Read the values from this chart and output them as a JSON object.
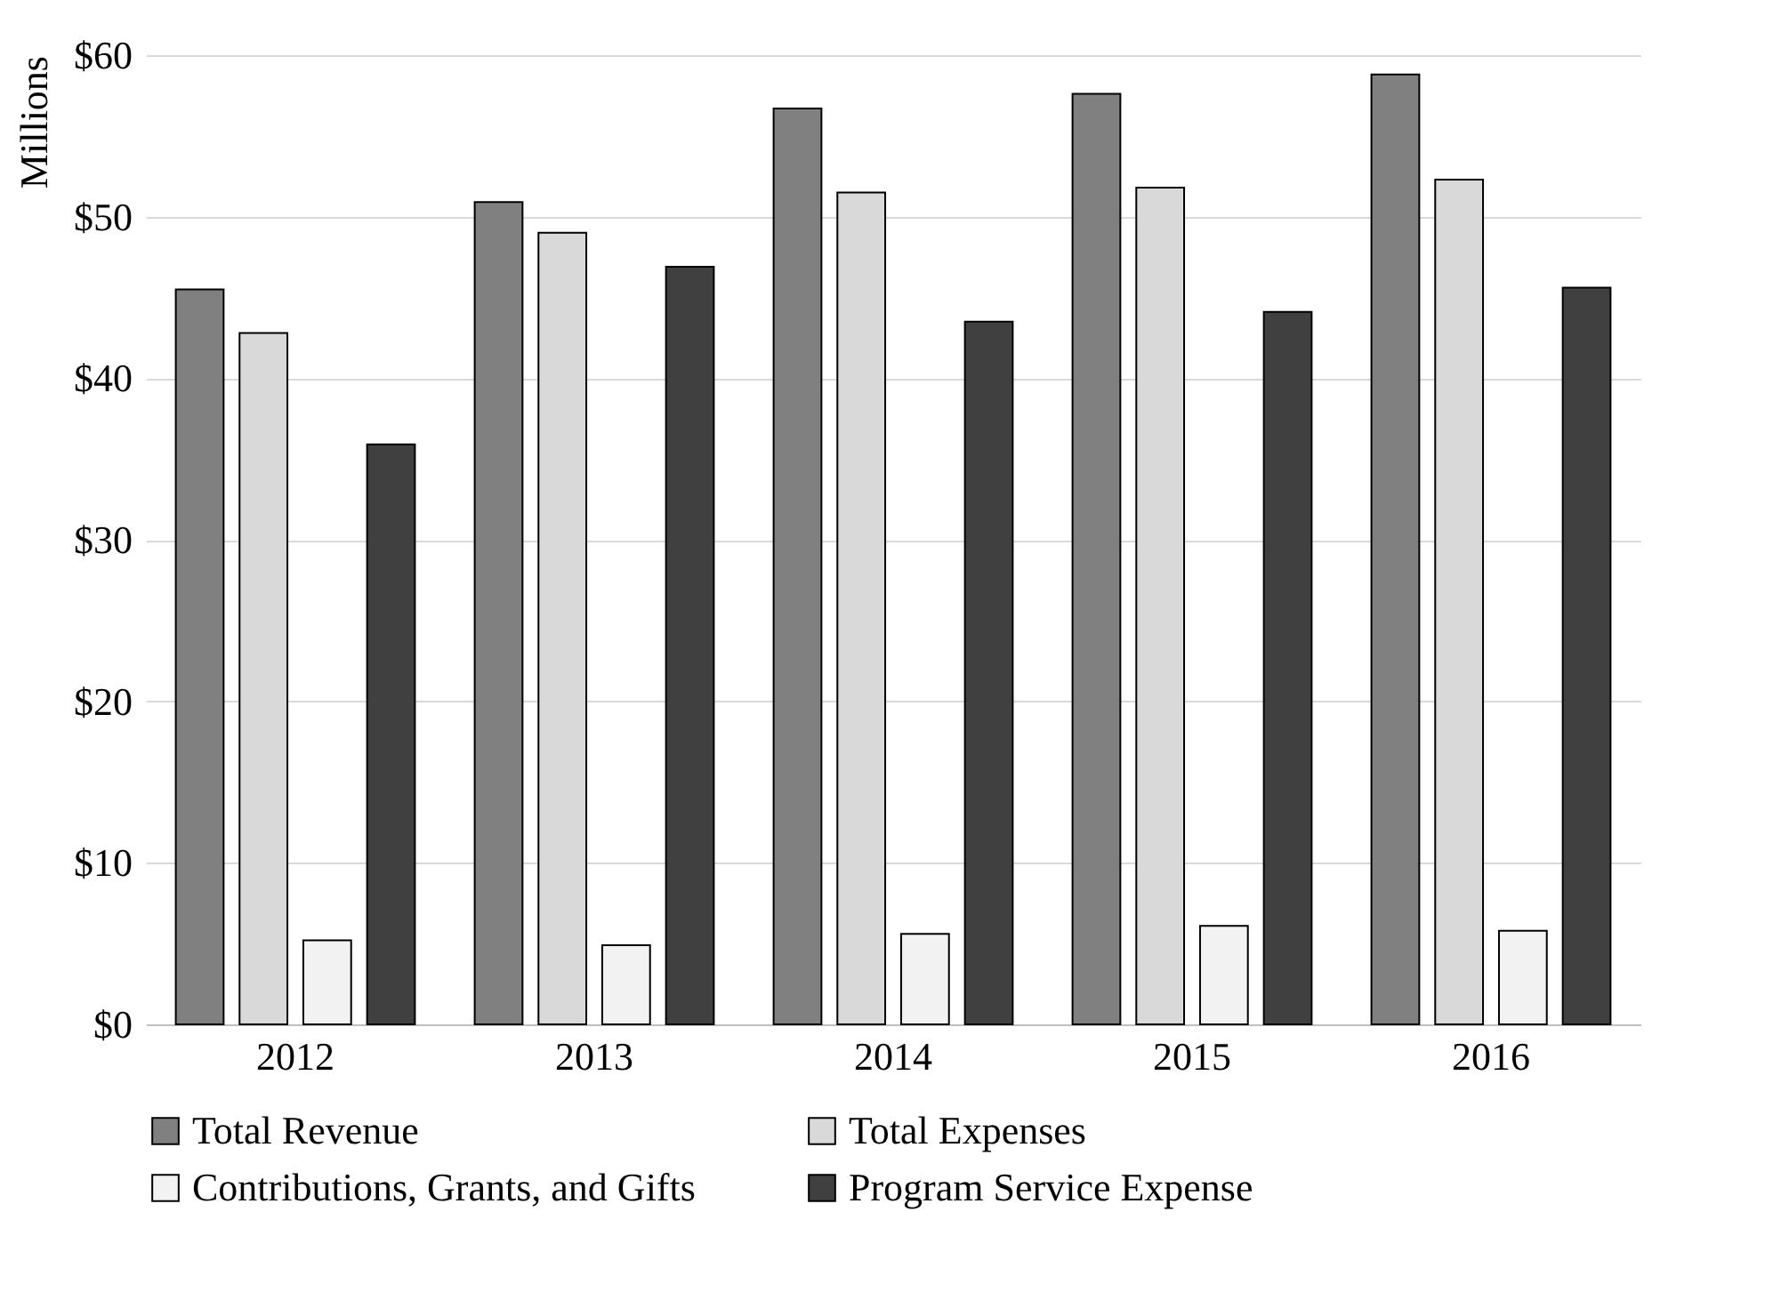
{
  "chart_data": {
    "type": "bar",
    "ylabel": "Millions",
    "categories": [
      "2012",
      "2013",
      "2014",
      "2015",
      "2016"
    ],
    "series": [
      {
        "name": "Total Revenue",
        "color": "#808080",
        "values": [
          45.5,
          50.9,
          56.7,
          57.6,
          58.8
        ]
      },
      {
        "name": "Total Expenses",
        "color": "#d9d9d9",
        "values": [
          42.8,
          49.0,
          51.5,
          51.8,
          52.3
        ]
      },
      {
        "name": "Contributions, Grants, and Gifts",
        "color": "#f2f2f2",
        "values": [
          5.2,
          4.9,
          5.6,
          6.1,
          5.8
        ]
      },
      {
        "name": "Program Service Expense",
        "color": "#404040",
        "values": [
          35.9,
          46.9,
          43.5,
          44.1,
          45.6
        ]
      }
    ],
    "ylim": [
      0,
      60
    ],
    "yticks": [
      {
        "value": 0,
        "label": "$0"
      },
      {
        "value": 10,
        "label": "$10"
      },
      {
        "value": 20,
        "label": "$20"
      },
      {
        "value": 30,
        "label": "$30"
      },
      {
        "value": 40,
        "label": "$40"
      },
      {
        "value": 50,
        "label": "$50"
      },
      {
        "value": 60,
        "label": "$60"
      }
    ],
    "grid": "y",
    "legend": "bottom"
  }
}
